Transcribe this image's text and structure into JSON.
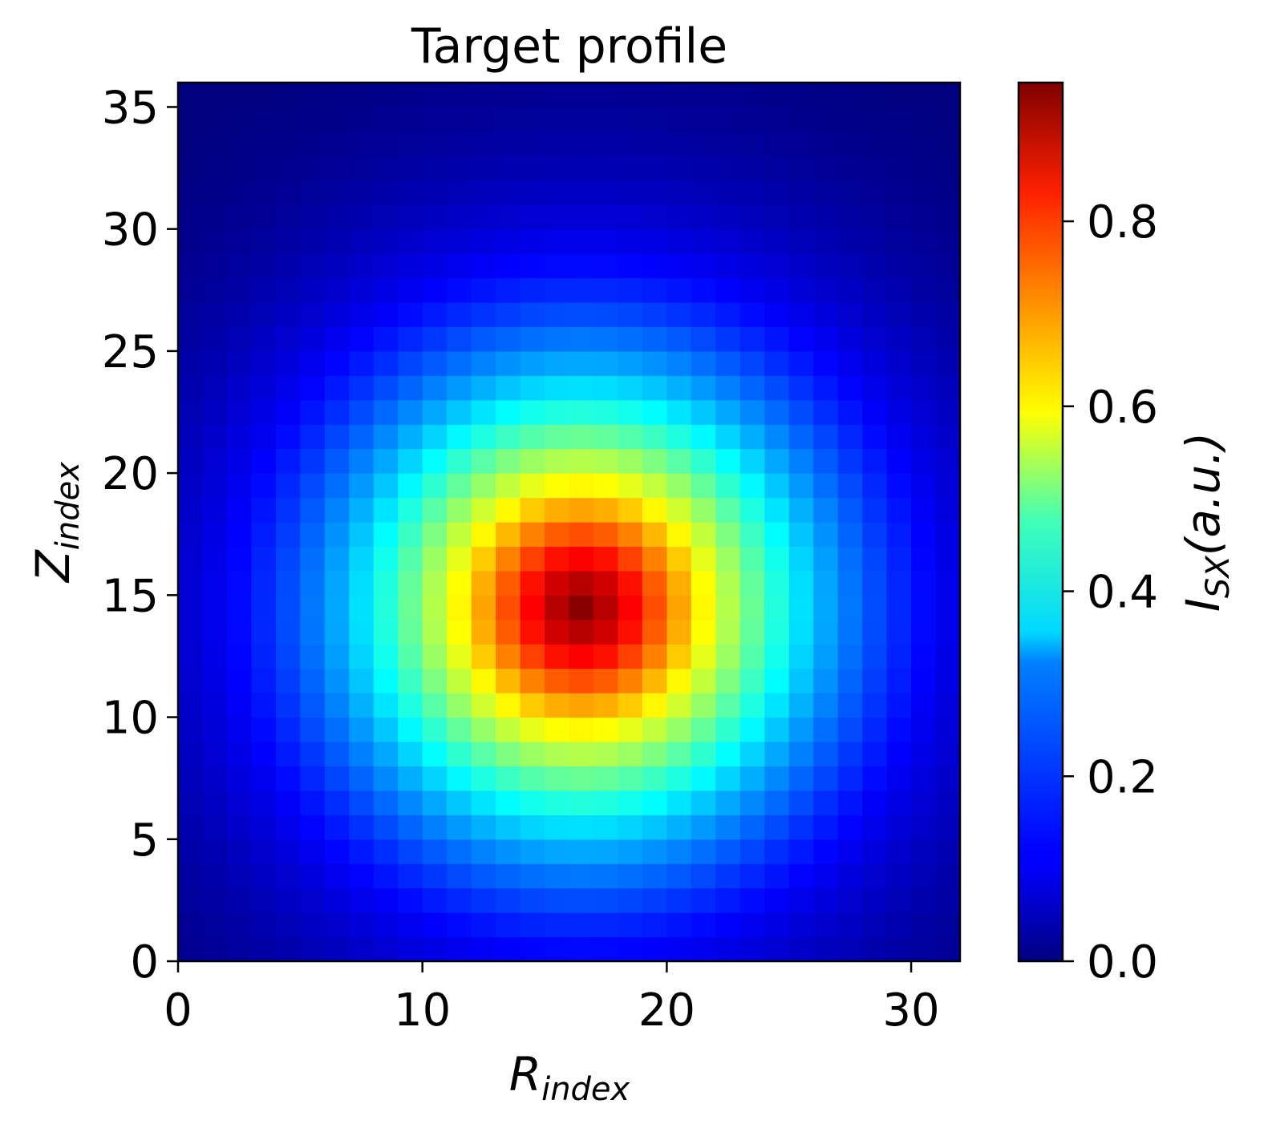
{
  "chart_data": {
    "type": "heatmap",
    "title": "Target profile",
    "xlabel": {
      "main": "R",
      "subscript": "index"
    },
    "ylabel": {
      "main": "Z",
      "subscript": "index"
    },
    "colorbar_label": {
      "main": "I",
      "subscript": "SX",
      "suffix": "(a.u.)"
    },
    "grid_size": {
      "cols": 32,
      "rows": 36
    },
    "xlim": [
      0,
      32
    ],
    "ylim": [
      0,
      36
    ],
    "xticks": [
      0,
      10,
      20,
      30
    ],
    "yticks": [
      0,
      5,
      10,
      15,
      20,
      25,
      30,
      35
    ],
    "colorbar_ticks": [
      "0.0",
      "0.2",
      "0.4",
      "0.6",
      "0.8"
    ],
    "colorbar_range": [
      0,
      0.95
    ],
    "colormap": "jet",
    "peak": {
      "x": 16.5,
      "y": 14.5,
      "value": 0.95
    },
    "grid": false
  }
}
